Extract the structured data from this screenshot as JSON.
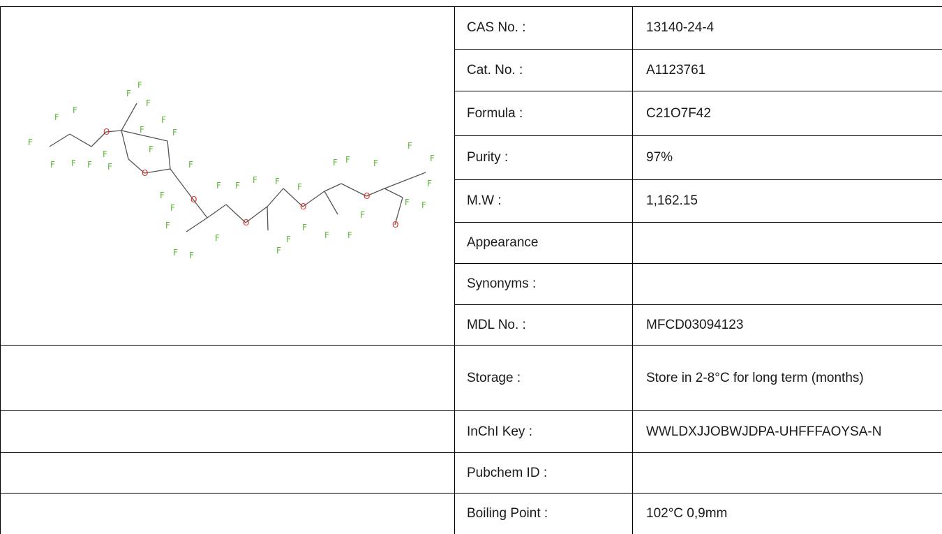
{
  "properties": [
    {
      "label": "CAS No. :",
      "value": "13140-24-4"
    },
    {
      "label": "Cat. No. :",
      "value": "A1123761"
    },
    {
      "label": "Formula :",
      "value": "C21O7F42"
    },
    {
      "label": "Purity :",
      "value": "97%"
    },
    {
      "label": "M.W :",
      "value": "1,162.15"
    },
    {
      "label": "Appearance",
      "value": ""
    },
    {
      "label": "Synonyms :",
      "value": ""
    },
    {
      "label": "MDL No. :",
      "value": "MFCD03094123"
    },
    {
      "label": "Storage :",
      "value": "Store in 2-8°C for long term (months)"
    },
    {
      "label": "InChI Key :",
      "value": "WWLDXJJOBWJDPA-UHFFFAOYSA-N"
    },
    {
      "label": "Pubchem ID :",
      "value": ""
    },
    {
      "label": "Boiling Point :",
      "value": "102°C 0,9mm"
    }
  ],
  "structure": {
    "atom_labels": {
      "fluorine": "F",
      "oxygen": "O"
    },
    "colors": {
      "bond": "#555555",
      "fluorine": "#5cb83a",
      "oxygen": "#e03030"
    }
  }
}
